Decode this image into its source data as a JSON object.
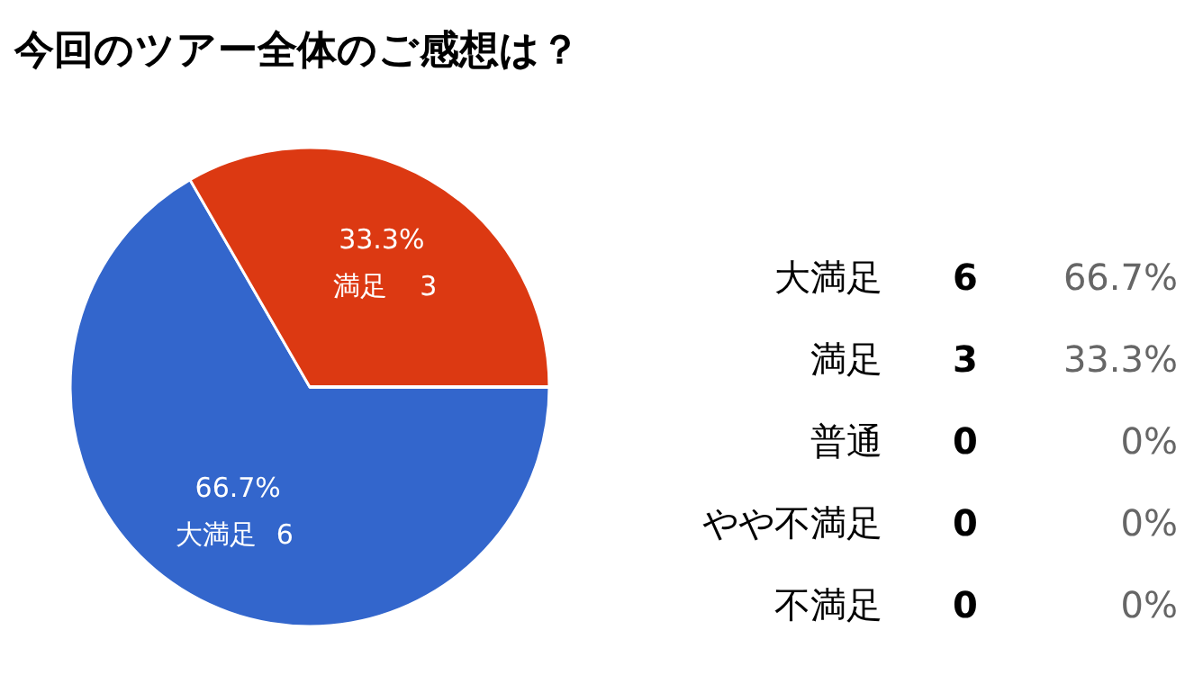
{
  "chart_data": {
    "type": "pie",
    "title": "今回のツアー全体のご感想は？",
    "categories": [
      "大満足",
      "満足",
      "普通",
      "やや不満足",
      "不満足"
    ],
    "values": [
      6,
      3,
      0,
      0,
      0
    ],
    "colors": [
      "#3366cc",
      "#dc3912",
      "#ff9900",
      "#109618",
      "#990099"
    ],
    "annotations": [
      "66.7%",
      "33.3%",
      "0%",
      "0%",
      "0%"
    ],
    "value_labels": [
      "6",
      "3",
      "0",
      "0",
      "0"
    ]
  }
}
